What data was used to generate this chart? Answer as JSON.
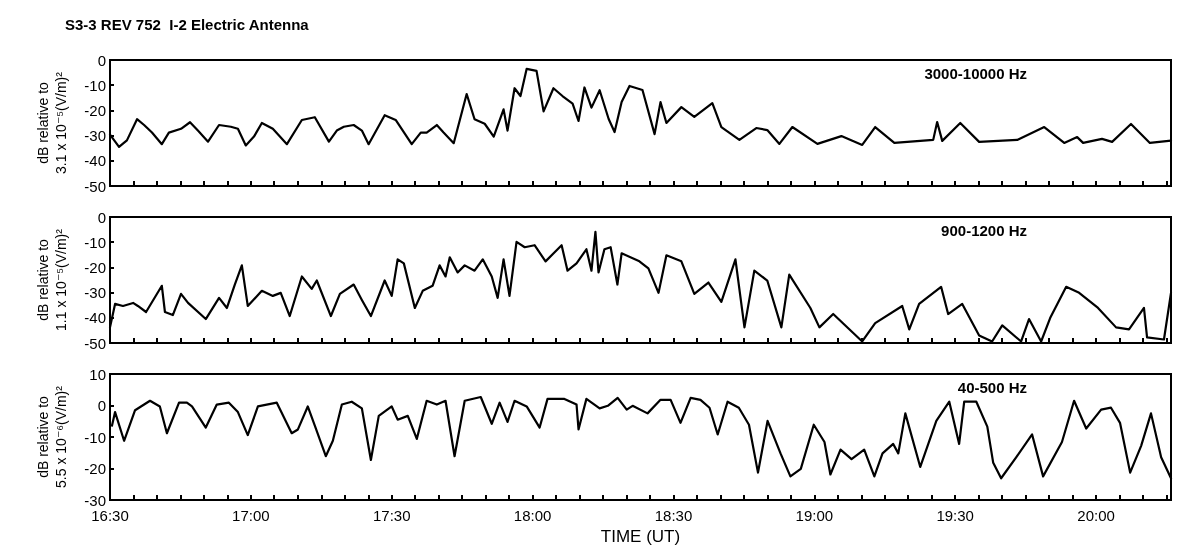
{
  "chart_data": [
    {
      "type": "line",
      "title": "S3-3 REV 752  I-2 Electric Antenna",
      "ylabel": "dB relative to\n3.1 x 10⁻⁵(V/m)²",
      "annotations": [
        "3000-10000 Hz"
      ],
      "xlim": [
        16.5,
        20.266
      ],
      "ylim": [
        -50,
        0
      ],
      "yticks": [
        -50,
        -40,
        -30,
        -20,
        -10,
        0
      ],
      "xticks": [
        {
          "value": 16.5,
          "label": null
        },
        {
          "value": 16.583,
          "label": null
        },
        {
          "value": 16.667,
          "label": null
        },
        {
          "value": 16.75,
          "label": null
        },
        {
          "value": 16.833,
          "label": null
        },
        {
          "value": 16.917,
          "label": null
        },
        {
          "value": 17,
          "label": null
        },
        {
          "value": 17.083,
          "label": null
        },
        {
          "value": 17.167,
          "label": null
        },
        {
          "value": 17.25,
          "label": null
        },
        {
          "value": 17.333,
          "label": null
        },
        {
          "value": 17.417,
          "label": null
        },
        {
          "value": 17.5,
          "label": null
        },
        {
          "value": 17.583,
          "label": null
        },
        {
          "value": 17.667,
          "label": null
        },
        {
          "value": 17.75,
          "label": null
        },
        {
          "value": 17.833,
          "label": null
        },
        {
          "value": 17.917,
          "label": null
        },
        {
          "value": 18,
          "label": null
        },
        {
          "value": 18.083,
          "label": null
        },
        {
          "value": 18.167,
          "label": null
        },
        {
          "value": 18.25,
          "label": null
        },
        {
          "value": 18.333,
          "label": null
        },
        {
          "value": 18.417,
          "label": null
        },
        {
          "value": 18.5,
          "label": null
        },
        {
          "value": 18.583,
          "label": null
        },
        {
          "value": 18.667,
          "label": null
        },
        {
          "value": 18.75,
          "label": null
        },
        {
          "value": 18.833,
          "label": null
        },
        {
          "value": 18.917,
          "label": null
        },
        {
          "value": 19,
          "label": null
        },
        {
          "value": 19.083,
          "label": null
        },
        {
          "value": 19.167,
          "label": null
        },
        {
          "value": 19.25,
          "label": null
        },
        {
          "value": 19.333,
          "label": null
        },
        {
          "value": 19.417,
          "label": null
        },
        {
          "value": 19.5,
          "label": null
        },
        {
          "value": 19.583,
          "label": null
        },
        {
          "value": 19.667,
          "label": null
        },
        {
          "value": 19.75,
          "label": null
        },
        {
          "value": 19.833,
          "label": null
        },
        {
          "value": 19.917,
          "label": null
        },
        {
          "value": 20,
          "label": null
        },
        {
          "value": 20.083,
          "label": null
        },
        {
          "value": 20.167,
          "label": null
        },
        {
          "value": 20.25,
          "label": null
        }
      ],
      "tick_labels": "y",
      "grid": false,
      "marker": "none",
      "line_style": "solid",
      "series": [
        {
          "color": "#000000",
          "x": [
            16.5,
            16.532,
            16.56,
            16.596,
            16.621,
            16.649,
            16.684,
            16.709,
            16.752,
            16.784,
            16.812,
            16.848,
            16.887,
            16.929,
            16.954,
            16.982,
            17.011,
            17.039,
            17.078,
            17.128,
            17.181,
            17.227,
            17.277,
            17.305,
            17.33,
            17.365,
            17.394,
            17.418,
            17.475,
            17.514,
            17.571,
            17.603,
            17.624,
            17.66,
            17.684,
            17.72,
            17.766,
            17.794,
            17.83,
            17.862,
            17.897,
            17.911,
            17.936,
            17.957,
            17.979,
            18.014,
            18.039,
            18.074,
            18.106,
            18.142,
            18.163,
            18.184,
            18.209,
            18.238,
            18.27,
            18.291,
            18.316,
            18.344,
            18.39,
            18.433,
            18.454,
            18.475,
            18.528,
            18.574,
            18.638,
            18.67,
            18.734,
            18.794,
            18.833,
            18.876,
            18.922,
            19.011,
            19.096,
            19.17,
            19.216,
            19.284,
            19.422,
            19.436,
            19.454,
            19.518,
            19.585,
            19.72,
            19.816,
            19.887,
            19.933,
            19.954,
            20.021,
            20.057,
            20.124,
            20.191,
            20.266
          ],
          "values": [
            -29.6,
            -34.5,
            -31.9,
            -23.5,
            -25.8,
            -28.8,
            -33.4,
            -28.8,
            -27.3,
            -24.7,
            -28,
            -32.4,
            -25.8,
            -26.5,
            -27.3,
            -33.9,
            -30.4,
            -25,
            -27.3,
            -33.4,
            -23.8,
            -22.7,
            -32.4,
            -28,
            -26.5,
            -25.8,
            -28,
            -33.4,
            -21.9,
            -23.8,
            -33.4,
            -28.8,
            -28.8,
            -25.8,
            -28.8,
            -33,
            -13.5,
            -23.5,
            -25.3,
            -30.4,
            -19.6,
            -28,
            -11.2,
            -14.3,
            -3.5,
            -4.3,
            -20.4,
            -11.2,
            -14.3,
            -17.3,
            -24.2,
            -10.9,
            -18.9,
            -12,
            -23.4,
            -28.6,
            -16.7,
            -10.3,
            -11.9,
            -29.4,
            -16.7,
            -25,
            -18.7,
            -22.6,
            -17.1,
            -26.6,
            -31.7,
            -27,
            -27.8,
            -33.3,
            -26.6,
            -33.3,
            -30.2,
            -33.7,
            -26.6,
            -32.9,
            -31.7,
            -24.6,
            -32.1,
            -25,
            -32.5,
            -31.7,
            -26.6,
            -32.9,
            -30.6,
            -32.9,
            -31.3,
            -32.5,
            -25.4,
            -32.9,
            -32
          ]
        }
      ]
    },
    {
      "type": "line",
      "ylabel": "dB relative to\n1.1 x 10⁻⁵(V/m)²",
      "annotations": [
        "900-1200 Hz"
      ],
      "xlim": [
        16.5,
        20.266
      ],
      "ylim": [
        -50,
        0
      ],
      "yticks": [
        -50,
        -40,
        -30,
        -20,
        -10,
        0
      ],
      "xticks": [
        {
          "value": 16.5,
          "label": null
        },
        {
          "value": 16.583,
          "label": null
        },
        {
          "value": 16.667,
          "label": null
        },
        {
          "value": 16.75,
          "label": null
        },
        {
          "value": 16.833,
          "label": null
        },
        {
          "value": 16.917,
          "label": null
        },
        {
          "value": 17,
          "label": null
        },
        {
          "value": 17.083,
          "label": null
        },
        {
          "value": 17.167,
          "label": null
        },
        {
          "value": 17.25,
          "label": null
        },
        {
          "value": 17.333,
          "label": null
        },
        {
          "value": 17.417,
          "label": null
        },
        {
          "value": 17.5,
          "label": null
        },
        {
          "value": 17.583,
          "label": null
        },
        {
          "value": 17.667,
          "label": null
        },
        {
          "value": 17.75,
          "label": null
        },
        {
          "value": 17.833,
          "label": null
        },
        {
          "value": 17.917,
          "label": null
        },
        {
          "value": 18,
          "label": null
        },
        {
          "value": 18.083,
          "label": null
        },
        {
          "value": 18.167,
          "label": null
        },
        {
          "value": 18.25,
          "label": null
        },
        {
          "value": 18.333,
          "label": null
        },
        {
          "value": 18.417,
          "label": null
        },
        {
          "value": 18.5,
          "label": null
        },
        {
          "value": 18.583,
          "label": null
        },
        {
          "value": 18.667,
          "label": null
        },
        {
          "value": 18.75,
          "label": null
        },
        {
          "value": 18.833,
          "label": null
        },
        {
          "value": 18.917,
          "label": null
        },
        {
          "value": 19,
          "label": null
        },
        {
          "value": 19.083,
          "label": null
        },
        {
          "value": 19.167,
          "label": null
        },
        {
          "value": 19.25,
          "label": null
        },
        {
          "value": 19.333,
          "label": null
        },
        {
          "value": 19.417,
          "label": null
        },
        {
          "value": 19.5,
          "label": null
        },
        {
          "value": 19.583,
          "label": null
        },
        {
          "value": 19.667,
          "label": null
        },
        {
          "value": 19.75,
          "label": null
        },
        {
          "value": 19.833,
          "label": null
        },
        {
          "value": 19.917,
          "label": null
        },
        {
          "value": 20,
          "label": null
        },
        {
          "value": 20.083,
          "label": null
        },
        {
          "value": 20.167,
          "label": null
        },
        {
          "value": 20.25,
          "label": null
        }
      ],
      "tick_labels": "y",
      "grid": false,
      "marker": "none",
      "line_style": "solid",
      "series": [
        {
          "color": "#000000",
          "x": [
            16.5,
            16.518,
            16.546,
            16.582,
            16.599,
            16.628,
            16.684,
            16.695,
            16.723,
            16.752,
            16.777,
            16.84,
            16.887,
            16.915,
            16.943,
            16.968,
            16.989,
            17.039,
            17.078,
            17.106,
            17.138,
            17.181,
            17.216,
            17.234,
            17.284,
            17.316,
            17.365,
            17.394,
            17.426,
            17.475,
            17.5,
            17.521,
            17.543,
            17.582,
            17.61,
            17.645,
            17.67,
            17.691,
            17.706,
            17.734,
            17.759,
            17.794,
            17.823,
            17.855,
            17.876,
            17.897,
            17.918,
            17.943,
            17.972,
            18.007,
            18.046,
            18.103,
            18.124,
            18.156,
            18.191,
            18.209,
            18.223,
            18.234,
            18.255,
            18.277,
            18.301,
            18.316,
            18.379,
            18.411,
            18.447,
            18.475,
            18.528,
            18.574,
            18.624,
            18.67,
            18.72,
            18.752,
            18.787,
            18.833,
            18.883,
            18.911,
            18.986,
            19.018,
            19.067,
            19.17,
            19.216,
            19.312,
            19.337,
            19.372,
            19.45,
            19.475,
            19.525,
            19.585,
            19.631,
            19.667,
            19.734,
            19.762,
            19.805,
            19.837,
            19.894,
            19.94,
            20.007,
            20.071,
            20.117,
            20.17,
            20.181,
            20.241,
            20.266
          ],
          "values": [
            -43.8,
            -34.5,
            -35.3,
            -34.1,
            -35.3,
            -37.7,
            -27.3,
            -37.7,
            -38.9,
            -30.5,
            -34.1,
            -40.5,
            -32.1,
            -36.1,
            -26.8,
            -19.2,
            -35.3,
            -29.3,
            -31.3,
            -30.1,
            -39.3,
            -23.6,
            -28.5,
            -25.2,
            -39.3,
            -30.5,
            -26.8,
            -32.9,
            -39.3,
            -25.2,
            -31.3,
            -16.8,
            -18.4,
            -36.1,
            -29.3,
            -27.3,
            -19.2,
            -23.6,
            -16,
            -22,
            -19.2,
            -21.3,
            -16.8,
            -23.6,
            -32.1,
            -16.8,
            -31.3,
            -9.9,
            -12,
            -11.2,
            -17.6,
            -11.2,
            -21.3,
            -18.4,
            -12.8,
            -21.3,
            -5.9,
            -22,
            -12.8,
            -12,
            -26.8,
            -14.4,
            -17.6,
            -20.4,
            -30.1,
            -15.2,
            -17.6,
            -30.5,
            -26,
            -33.7,
            -16.8,
            -43.8,
            -21.3,
            -25.2,
            -43.8,
            -22.9,
            -36.1,
            -43.8,
            -38.5,
            -49.4,
            -42.1,
            -35.3,
            -44.6,
            -34.5,
            -27.7,
            -38.5,
            -34.5,
            -47,
            -49.4,
            -43,
            -49.4,
            -40.5,
            -49.4,
            -40.1,
            -27.7,
            -30.1,
            -36.1,
            -43.8,
            -44.6,
            -36.1,
            -47.8,
            -48.6,
            -30.1
          ]
        }
      ]
    },
    {
      "type": "line",
      "ylabel": "dB relative to\n5.5 x 10⁻⁶(V/m)²",
      "xlabel": "TIME (UT)",
      "annotations": [
        "40-500 Hz"
      ],
      "xlim": [
        16.5,
        20.266
      ],
      "ylim": [
        -30,
        10
      ],
      "yticks": [
        -30,
        -20,
        -10,
        0,
        10
      ],
      "xticks": [
        {
          "value": 16.5,
          "label": "16:30"
        },
        {
          "value": 16.583,
          "label": null
        },
        {
          "value": 16.667,
          "label": null
        },
        {
          "value": 16.75,
          "label": null
        },
        {
          "value": 16.833,
          "label": null
        },
        {
          "value": 16.917,
          "label": null
        },
        {
          "value": 17,
          "label": "17:00"
        },
        {
          "value": 17.083,
          "label": null
        },
        {
          "value": 17.167,
          "label": null
        },
        {
          "value": 17.25,
          "label": null
        },
        {
          "value": 17.333,
          "label": null
        },
        {
          "value": 17.417,
          "label": null
        },
        {
          "value": 17.5,
          "label": "17:30"
        },
        {
          "value": 17.583,
          "label": null
        },
        {
          "value": 17.667,
          "label": null
        },
        {
          "value": 17.75,
          "label": null
        },
        {
          "value": 17.833,
          "label": null
        },
        {
          "value": 17.917,
          "label": null
        },
        {
          "value": 18,
          "label": "18:00"
        },
        {
          "value": 18.083,
          "label": null
        },
        {
          "value": 18.167,
          "label": null
        },
        {
          "value": 18.25,
          "label": null
        },
        {
          "value": 18.333,
          "label": null
        },
        {
          "value": 18.417,
          "label": null
        },
        {
          "value": 18.5,
          "label": "18:30"
        },
        {
          "value": 18.583,
          "label": null
        },
        {
          "value": 18.667,
          "label": null
        },
        {
          "value": 18.75,
          "label": null
        },
        {
          "value": 18.833,
          "label": null
        },
        {
          "value": 18.917,
          "label": null
        },
        {
          "value": 19,
          "label": "19:00"
        },
        {
          "value": 19.083,
          "label": null
        },
        {
          "value": 19.167,
          "label": null
        },
        {
          "value": 19.25,
          "label": null
        },
        {
          "value": 19.333,
          "label": null
        },
        {
          "value": 19.417,
          "label": null
        },
        {
          "value": 19.5,
          "label": "19:30"
        },
        {
          "value": 19.583,
          "label": null
        },
        {
          "value": 19.667,
          "label": null
        },
        {
          "value": 19.75,
          "label": null
        },
        {
          "value": 19.833,
          "label": null
        },
        {
          "value": 19.917,
          "label": null
        },
        {
          "value": 20,
          "label": "20:00"
        },
        {
          "value": 20.083,
          "label": null
        },
        {
          "value": 20.167,
          "label": null
        },
        {
          "value": 20.25,
          "label": null
        }
      ],
      "grid": false,
      "marker": "none",
      "line_style": "solid",
      "series": [
        {
          "color": "#000000",
          "x": [
            16.507,
            16.518,
            16.55,
            16.589,
            16.642,
            16.677,
            16.702,
            16.745,
            16.773,
            16.791,
            16.84,
            16.879,
            16.922,
            16.954,
            16.989,
            17.025,
            17.092,
            17.145,
            17.167,
            17.202,
            17.227,
            17.266,
            17.291,
            17.323,
            17.358,
            17.394,
            17.426,
            17.454,
            17.5,
            17.521,
            17.557,
            17.589,
            17.624,
            17.66,
            17.691,
            17.723,
            17.759,
            17.816,
            17.855,
            17.883,
            17.911,
            17.936,
            17.979,
            18.025,
            18.053,
            18.113,
            18.156,
            18.163,
            18.191,
            18.238,
            18.267,
            18.302,
            18.334,
            18.355,
            18.408,
            18.454,
            18.49,
            18.525,
            18.561,
            18.596,
            18.628,
            18.657,
            18.692,
            18.732,
            18.768,
            18.8,
            18.834,
            18.88,
            18.915,
            18.952,
            18.998,
            19.036,
            19.057,
            19.093,
            19.132,
            19.177,
            19.213,
            19.242,
            19.28,
            19.298,
            19.323,
            19.376,
            19.433,
            19.479,
            19.514,
            19.532,
            19.575,
            19.614,
            19.635,
            19.663,
            19.717,
            19.773,
            19.812,
            19.879,
            19.922,
            19.965,
            20.018,
            20.053,
            20.085,
            20.121,
            20.16,
            20.195,
            20.231,
            20.266
          ],
          "values": [
            -6.4,
            -2.1,
            -11.2,
            -1.5,
            1.5,
            -0.3,
            -8.8,
            0.9,
            0.9,
            -0.3,
            -7,
            0.3,
            0.9,
            -2.1,
            -9.4,
            -0.3,
            0.9,
            -8.8,
            -7.6,
            -0.3,
            -6.4,
            -16.1,
            -11.2,
            0.3,
            1.2,
            -0.9,
            -17.3,
            -3.3,
            -0.3,
            -4.5,
            -3.3,
            -10.6,
            1.5,
            0.3,
            1.5,
            -16.1,
            1.5,
            2.7,
            -5.8,
            0.9,
            -5.2,
            1.5,
            -0.3,
            -7,
            2.1,
            2.1,
            0.3,
            -7.6,
            2.1,
            -0.9,
            -0.1,
            2.4,
            -1.3,
            -0.1,
            -2.5,
            1.8,
            1.8,
            -5.5,
            2.4,
            1.8,
            -0.7,
            -9.2,
            1.2,
            -0.7,
            -6.1,
            -21.3,
            -4.9,
            -15.2,
            -22.5,
            -20.1,
            -6.1,
            -11.6,
            -21.9,
            -14,
            -17,
            -14,
            -22.5,
            -15.2,
            -12.2,
            -15.2,
            -2.5,
            -19.5,
            -4.9,
            1.2,
            -12.2,
            1.2,
            1.2,
            -6.7,
            -18.2,
            -23.1,
            -16.4,
            -9.2,
            -22.5,
            -11.6,
            1.5,
            -7.3,
            -1.3,
            -0.7,
            -5.5,
            -21.3,
            -12.8,
            -2.5,
            -16.4,
            -23.1
          ]
        }
      ]
    }
  ]
}
